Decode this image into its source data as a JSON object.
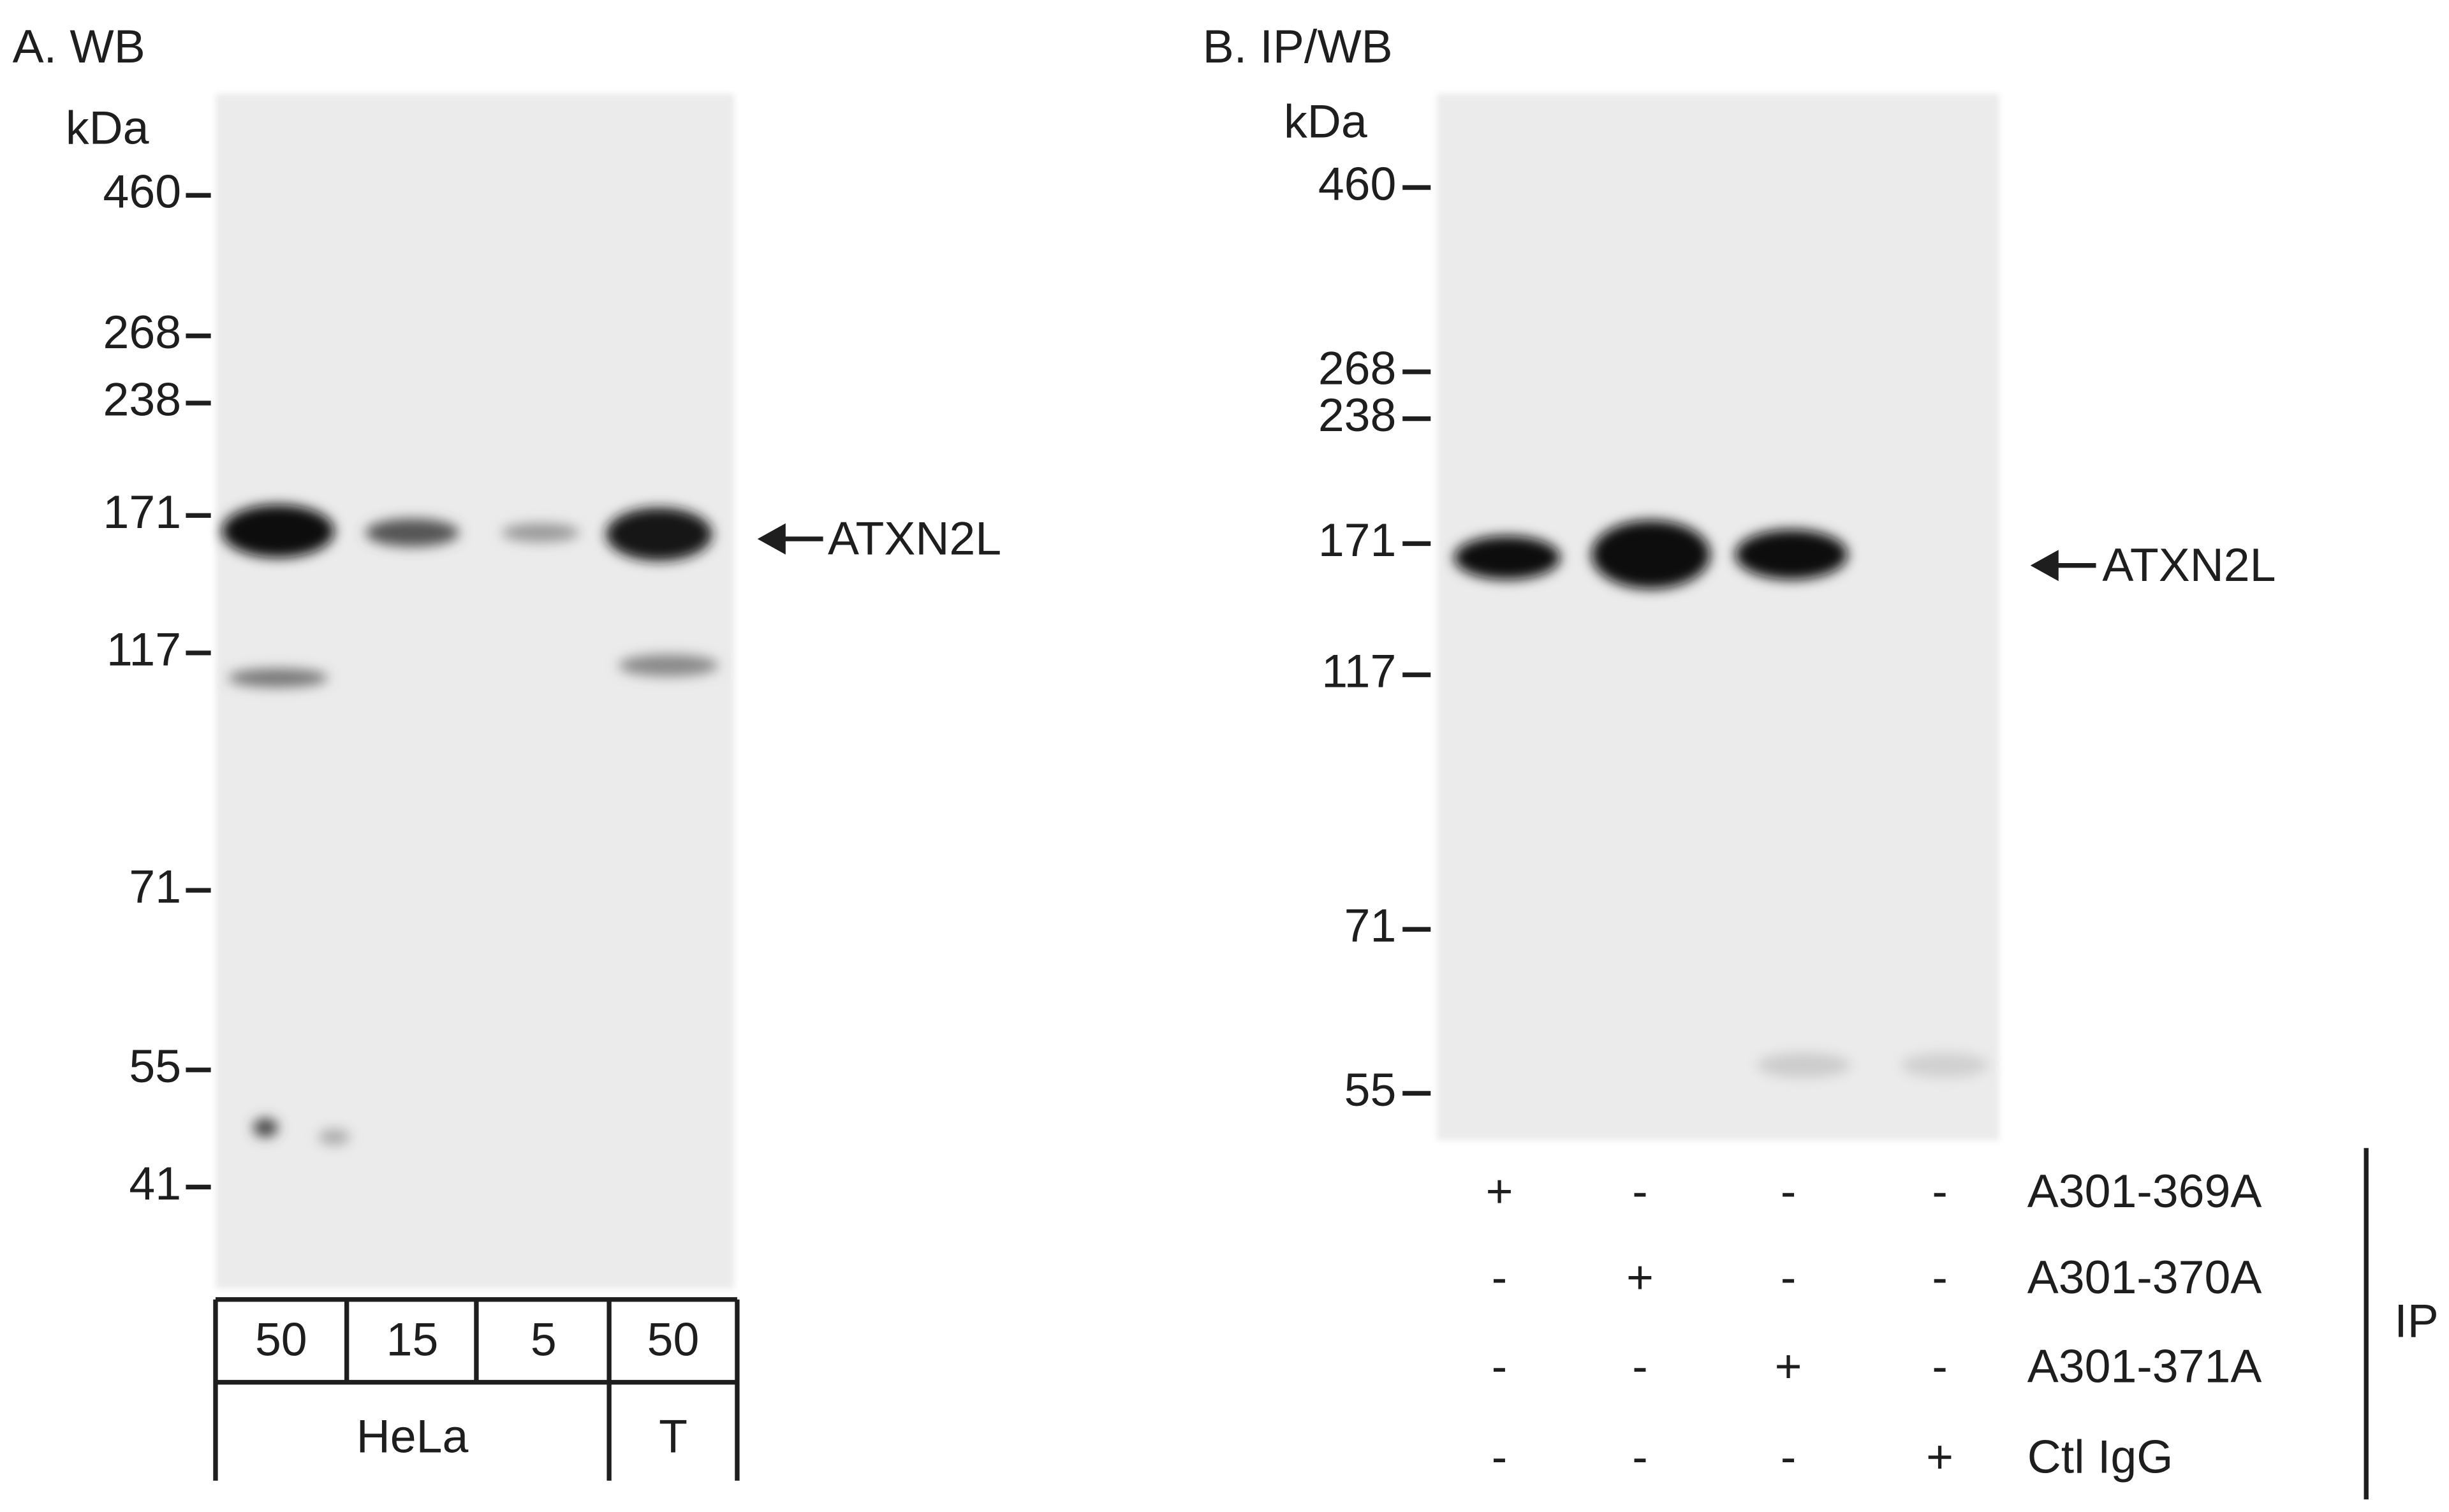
{
  "panels": [
    {
      "title": "A. WB",
      "unit": "kDa",
      "markers": [
        "460",
        "268",
        "238",
        "171",
        "117",
        "71",
        "55",
        "41"
      ],
      "band_label": "ATXN2L",
      "lanes": [
        "50",
        "15",
        "5",
        "50"
      ],
      "groups": [
        "HeLa",
        "T"
      ]
    },
    {
      "title": "B. IP/WB",
      "unit": "kDa",
      "markers": [
        "460",
        "268",
        "238",
        "171",
        "117",
        "71",
        "55"
      ],
      "band_label": "ATXN2L",
      "antibodies": [
        "A301-369A",
        "A301-370A",
        "A301-371A",
        "Ctl IgG"
      ],
      "signs": [
        [
          "+",
          "-",
          "-",
          "-"
        ],
        [
          "-",
          "+",
          "-",
          "-"
        ],
        [
          "-",
          "-",
          "+",
          "-"
        ],
        [
          "-",
          "-",
          "-",
          "+"
        ]
      ],
      "side_label": "IP"
    }
  ]
}
